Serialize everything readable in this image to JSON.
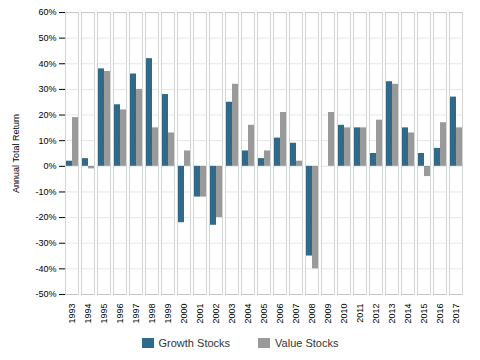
{
  "chart_data": {
    "type": "bar",
    "categories": [
      "1993",
      "1994",
      "1995",
      "1996",
      "1997",
      "1998",
      "1999",
      "2000",
      "2001",
      "2002",
      "2003",
      "2004",
      "2005",
      "2006",
      "2007",
      "2008",
      "2009",
      "2010",
      "2011",
      "2012",
      "2013",
      "2014",
      "2015",
      "2016",
      "2017"
    ],
    "series": [
      {
        "name": "Growth Stocks",
        "color": "#2e6b8a",
        "values": [
          2,
          3,
          38,
          24,
          36,
          42,
          28,
          -22,
          -12,
          -23,
          25,
          6,
          3,
          11,
          9,
          -35,
          0,
          16,
          15,
          5,
          33,
          15,
          5,
          7,
          27
        ]
      },
      {
        "name": "Value Stocks",
        "color": "#9a9a9a",
        "values": [
          19,
          -1,
          37,
          22,
          30,
          15,
          13,
          6,
          -12,
          -20,
          32,
          16,
          6,
          21,
          2,
          -40,
          21,
          15,
          15,
          18,
          32,
          13,
          -4,
          17,
          15
        ]
      }
    ],
    "ylabel": "Annual Total Return",
    "ylim": [
      -50,
      60
    ],
    "yticks": [
      {
        "value": -50,
        "label": "-50%"
      },
      {
        "value": -40,
        "label": "-40%"
      },
      {
        "value": -30,
        "label": "-30%"
      },
      {
        "value": -20,
        "label": "-20%"
      },
      {
        "value": -10,
        "label": "-10%"
      },
      {
        "value": 0,
        "label": "0%"
      },
      {
        "value": 10,
        "label": "10%"
      },
      {
        "value": 20,
        "label": "20%"
      },
      {
        "value": 30,
        "label": "30%"
      },
      {
        "value": 40,
        "label": "40%"
      },
      {
        "value": 50,
        "label": "50%"
      },
      {
        "value": 60,
        "label": "60%"
      }
    ],
    "grid": true,
    "legend": "bottom"
  }
}
